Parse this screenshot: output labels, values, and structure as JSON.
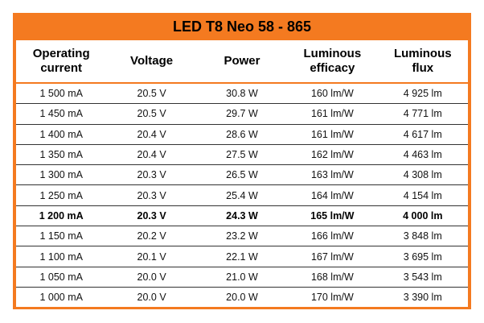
{
  "header": {
    "title": "LED T8 Neo 58 - 865"
  },
  "table": {
    "columns": [
      "Operating current",
      "Voltage",
      "Power",
      "Luminous efficacy",
      "Luminous flux"
    ],
    "rows": [
      [
        "1 500 mA",
        "20.5 V",
        "30.8 W",
        "160 lm/W",
        "4 925 lm"
      ],
      [
        "1 450 mA",
        "20.5 V",
        "29.7 W",
        "161 lm/W",
        "4 771 lm"
      ],
      [
        "1 400 mA",
        "20.4 V",
        "28.6 W",
        "161 lm/W",
        "4 617 lm"
      ],
      [
        "1 350 mA",
        "20.4 V",
        "27.5 W",
        "162 lm/W",
        "4 463 lm"
      ],
      [
        "1 300 mA",
        "20.3 V",
        "26.5 W",
        "163 lm/W",
        "4 308 lm"
      ],
      [
        "1 250 mA",
        "20.3 V",
        "25.4 W",
        "164 lm/W",
        "4 154 lm"
      ],
      [
        "1 200 mA",
        "20.3 V",
        "24.3 W",
        "165 lm/W",
        "4 000 lm"
      ],
      [
        "1 150 mA",
        "20.2 V",
        "23.2 W",
        "166 lm/W",
        "3 848 lm"
      ],
      [
        "1 100 mA",
        "20.1 V",
        "22.1 W",
        "167 lm/W",
        "3 695 lm"
      ],
      [
        "1 050 mA",
        "20.0 V",
        "21.0 W",
        "168 lm/W",
        "3 543 lm"
      ],
      [
        "1 000 mA",
        "20.0 V",
        "20.0 W",
        "170 lm/W",
        "3 390 lm"
      ]
    ]
  }
}
